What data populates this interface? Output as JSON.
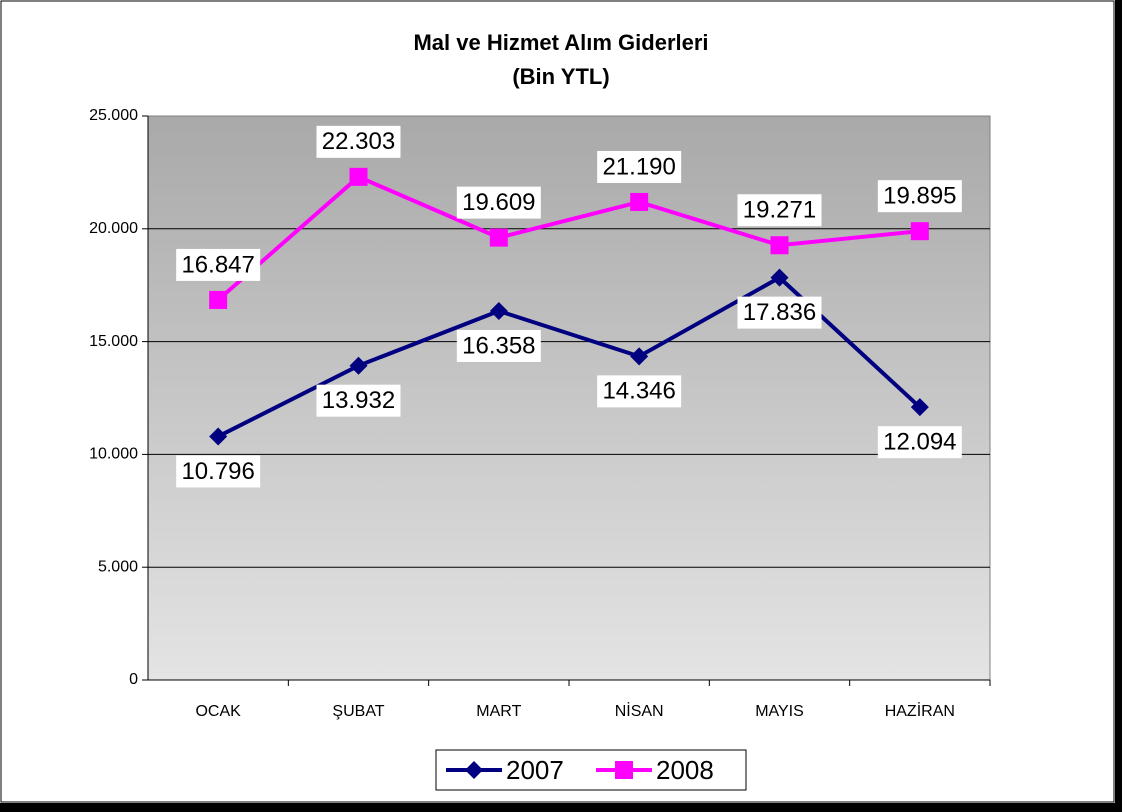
{
  "chart_data": {
    "type": "line",
    "title": "Mal ve Hizmet Alım Giderleri",
    "subtitle": "(Bin YTL)",
    "categories": [
      "OCAK",
      "ŞUBAT",
      "MART",
      "NİSAN",
      "MAYIS",
      "HAZİRAN"
    ],
    "series": [
      {
        "name": "2007",
        "color": "#000080",
        "marker": "diamond",
        "values": [
          10796,
          13932,
          16358,
          14346,
          17836,
          12094
        ],
        "value_labels": [
          "10.796",
          "13.932",
          "16.358",
          "14.346",
          "17.836",
          "12.094"
        ]
      },
      {
        "name": "2008",
        "color": "#ff00ff",
        "marker": "square",
        "values": [
          16847,
          22303,
          19609,
          21190,
          19271,
          19895
        ],
        "value_labels": [
          "16.847",
          "22.303",
          "19.609",
          "21.190",
          "19.271",
          "19.895"
        ]
      }
    ],
    "ylim": [
      0,
      25000
    ],
    "yticks": [
      0,
      {
        "value": 5000,
        "label": "5.000"
      },
      {
        "value": 10000,
        "label": "10.000"
      },
      {
        "value": 15000,
        "label": "15.000"
      },
      {
        "value": 20000,
        "label": "20.000"
      },
      {
        "value": 25000,
        "label": "25.000"
      }
    ],
    "grid": true,
    "legend": "bottom"
  }
}
